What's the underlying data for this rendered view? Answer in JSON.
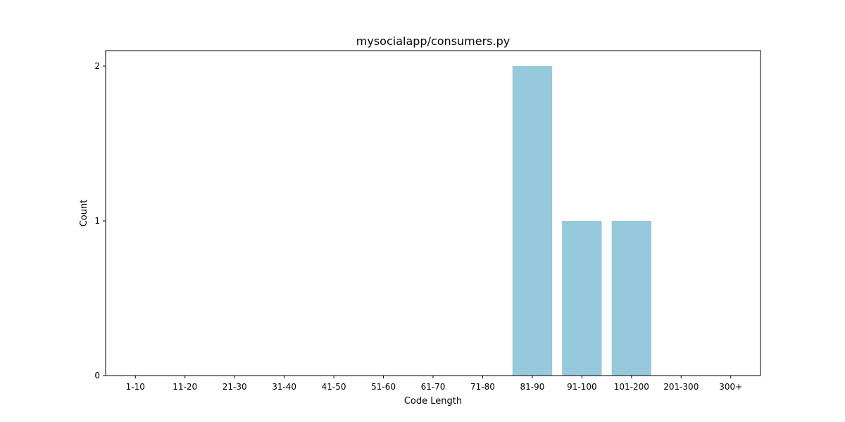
{
  "chart_data": {
    "type": "bar",
    "title": "mysocialapp/consumers.py",
    "xlabel": "Code Length",
    "ylabel": "Count",
    "categories": [
      "1-10",
      "11-20",
      "21-30",
      "31-40",
      "41-50",
      "51-60",
      "61-70",
      "71-80",
      "81-90",
      "91-100",
      "101-200",
      "201-300",
      "300+"
    ],
    "values": [
      0,
      0,
      0,
      0,
      0,
      0,
      0,
      0,
      2,
      1,
      1,
      0,
      0
    ],
    "ylim": [
      0,
      2.1
    ],
    "yticks": [
      0,
      1,
      2
    ],
    "grid": false,
    "bar_color": "#96c9dc"
  }
}
